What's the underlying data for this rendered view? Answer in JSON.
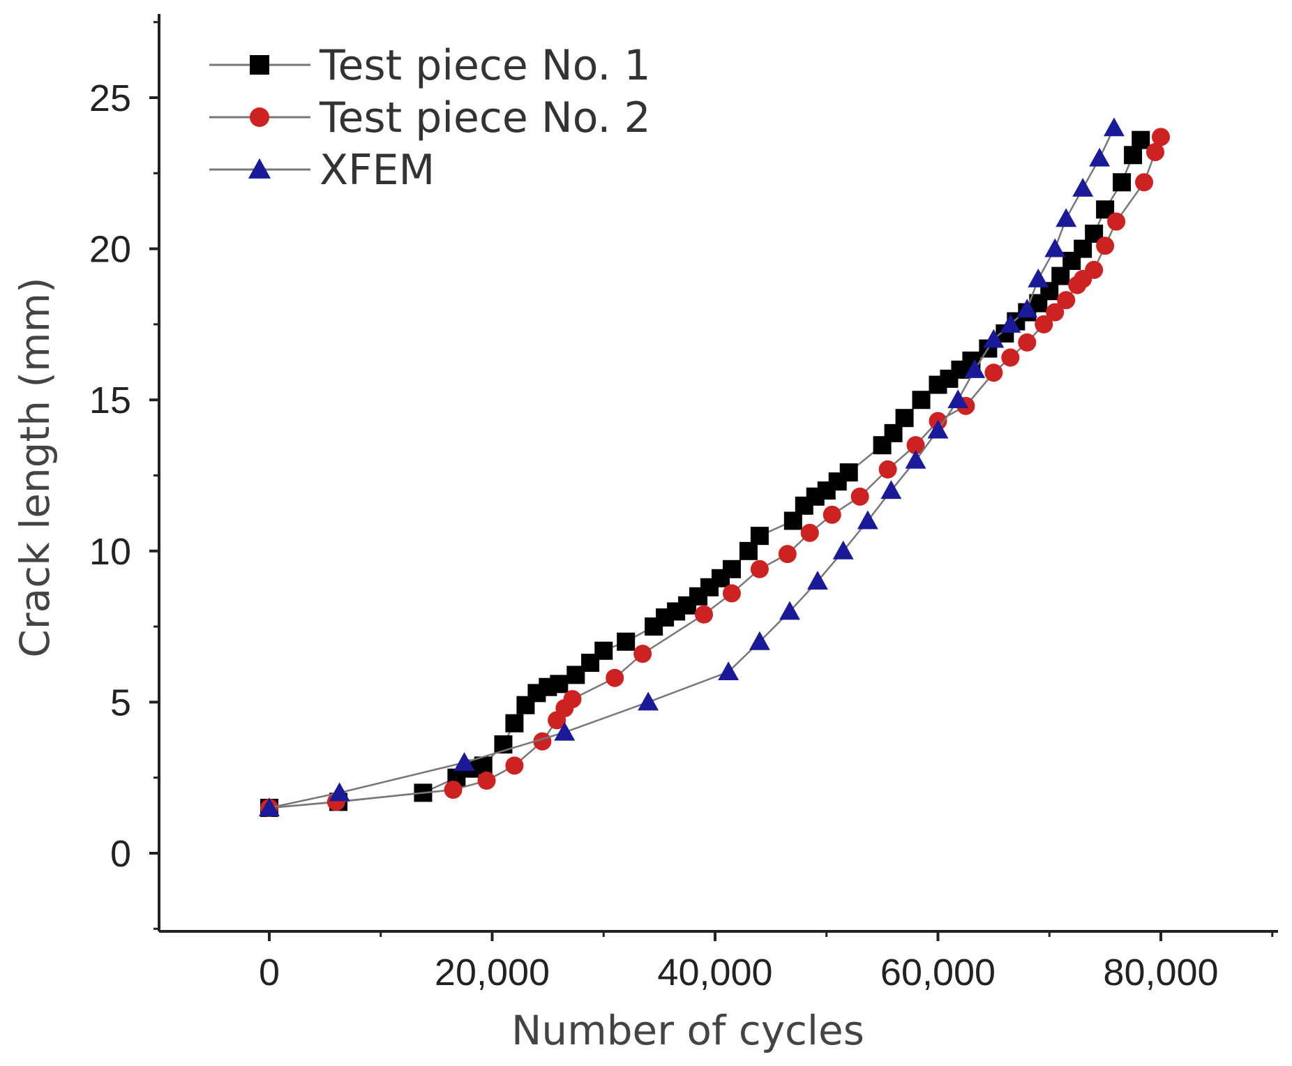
{
  "chart_data": {
    "type": "line",
    "title": "",
    "xlabel": "Number of cycles",
    "ylabel": "Crack length (mm)",
    "xlim": [
      -10000,
      90000
    ],
    "ylim": [
      -2.5,
      27.5
    ],
    "xticks": [
      0,
      20000,
      40000,
      60000,
      80000
    ],
    "xtick_labels": [
      "0",
      "20,000",
      "40,000",
      "60,000",
      "80,000"
    ],
    "yticks": [
      0,
      5,
      10,
      15,
      20,
      25
    ],
    "ytick_labels": [
      "0",
      "5",
      "10",
      "15",
      "20",
      "25"
    ],
    "grid": false,
    "legend_position": "top-left",
    "series": [
      {
        "name": "Test piece No. 1",
        "color": "#000000",
        "line_color": "#777777",
        "marker": "square",
        "x": [
          0,
          6200,
          13800,
          16800,
          18000,
          19200,
          21000,
          22000,
          23000,
          24000,
          25000,
          26000,
          27500,
          28800,
          30000,
          32000,
          34500,
          35500,
          36500,
          37500,
          38500,
          39500,
          40500,
          41500,
          43000,
          44000,
          47000,
          48000,
          49000,
          50000,
          51000,
          52000,
          55000,
          56000,
          57000,
          58500,
          60000,
          61000,
          62000,
          63000,
          64500,
          66000,
          67000,
          68000,
          69000,
          70000,
          71000,
          72000,
          73000,
          74000,
          75000,
          76500,
          77500,
          78200
        ],
        "y": [
          1.5,
          1.7,
          2.0,
          2.5,
          2.8,
          2.9,
          3.6,
          4.3,
          4.9,
          5.3,
          5.5,
          5.6,
          5.9,
          6.3,
          6.7,
          7.0,
          7.5,
          7.8,
          8.0,
          8.2,
          8.5,
          8.8,
          9.1,
          9.4,
          10.0,
          10.5,
          11.0,
          11.5,
          11.8,
          12.0,
          12.3,
          12.6,
          13.5,
          13.9,
          14.4,
          15.0,
          15.5,
          15.7,
          16.0,
          16.3,
          16.7,
          17.2,
          17.6,
          17.9,
          18.2,
          18.6,
          19.1,
          19.6,
          20.0,
          20.5,
          21.3,
          22.2,
          23.1,
          23.6
        ]
      },
      {
        "name": "Test piece No. 2",
        "color": "#cc2222",
        "line_color": "#777777",
        "marker": "circle",
        "x": [
          0,
          6000,
          16500,
          19500,
          22000,
          24500,
          25800,
          26500,
          27200,
          31000,
          33500,
          39000,
          41500,
          44000,
          46500,
          48500,
          50500,
          53000,
          55500,
          58000,
          60000,
          62500,
          65000,
          66500,
          68000,
          69500,
          70500,
          71500,
          72500,
          73000,
          74000,
          75000,
          76000,
          78500,
          79500,
          80000
        ],
        "y": [
          1.5,
          1.7,
          2.1,
          2.4,
          2.9,
          3.7,
          4.4,
          4.8,
          5.1,
          5.8,
          6.6,
          7.9,
          8.6,
          9.4,
          9.9,
          10.6,
          11.2,
          11.8,
          12.7,
          13.5,
          14.3,
          14.8,
          15.9,
          16.4,
          16.9,
          17.5,
          17.9,
          18.3,
          18.8,
          19.0,
          19.3,
          20.1,
          20.9,
          22.2,
          23.2,
          23.7
        ]
      },
      {
        "name": "XFEM",
        "color": "#1a1a99",
        "line_color": "#777777",
        "marker": "triangle",
        "x": [
          0,
          6300,
          17500,
          26500,
          34000,
          41200,
          44000,
          46700,
          49200,
          51500,
          53700,
          55800,
          58000,
          60000,
          61800,
          63300,
          65000,
          66500,
          68000,
          69000,
          70500,
          71500,
          73000,
          74500,
          75800
        ],
        "y": [
          1.5,
          2.0,
          3.0,
          4.0,
          5.0,
          6.0,
          7.0,
          8.0,
          9.0,
          10.0,
          11.0,
          12.0,
          13.0,
          14.0,
          15.0,
          16.0,
          17.0,
          17.5,
          18.0,
          19.0,
          20.0,
          21.0,
          22.0,
          23.0,
          24.0
        ]
      }
    ]
  }
}
